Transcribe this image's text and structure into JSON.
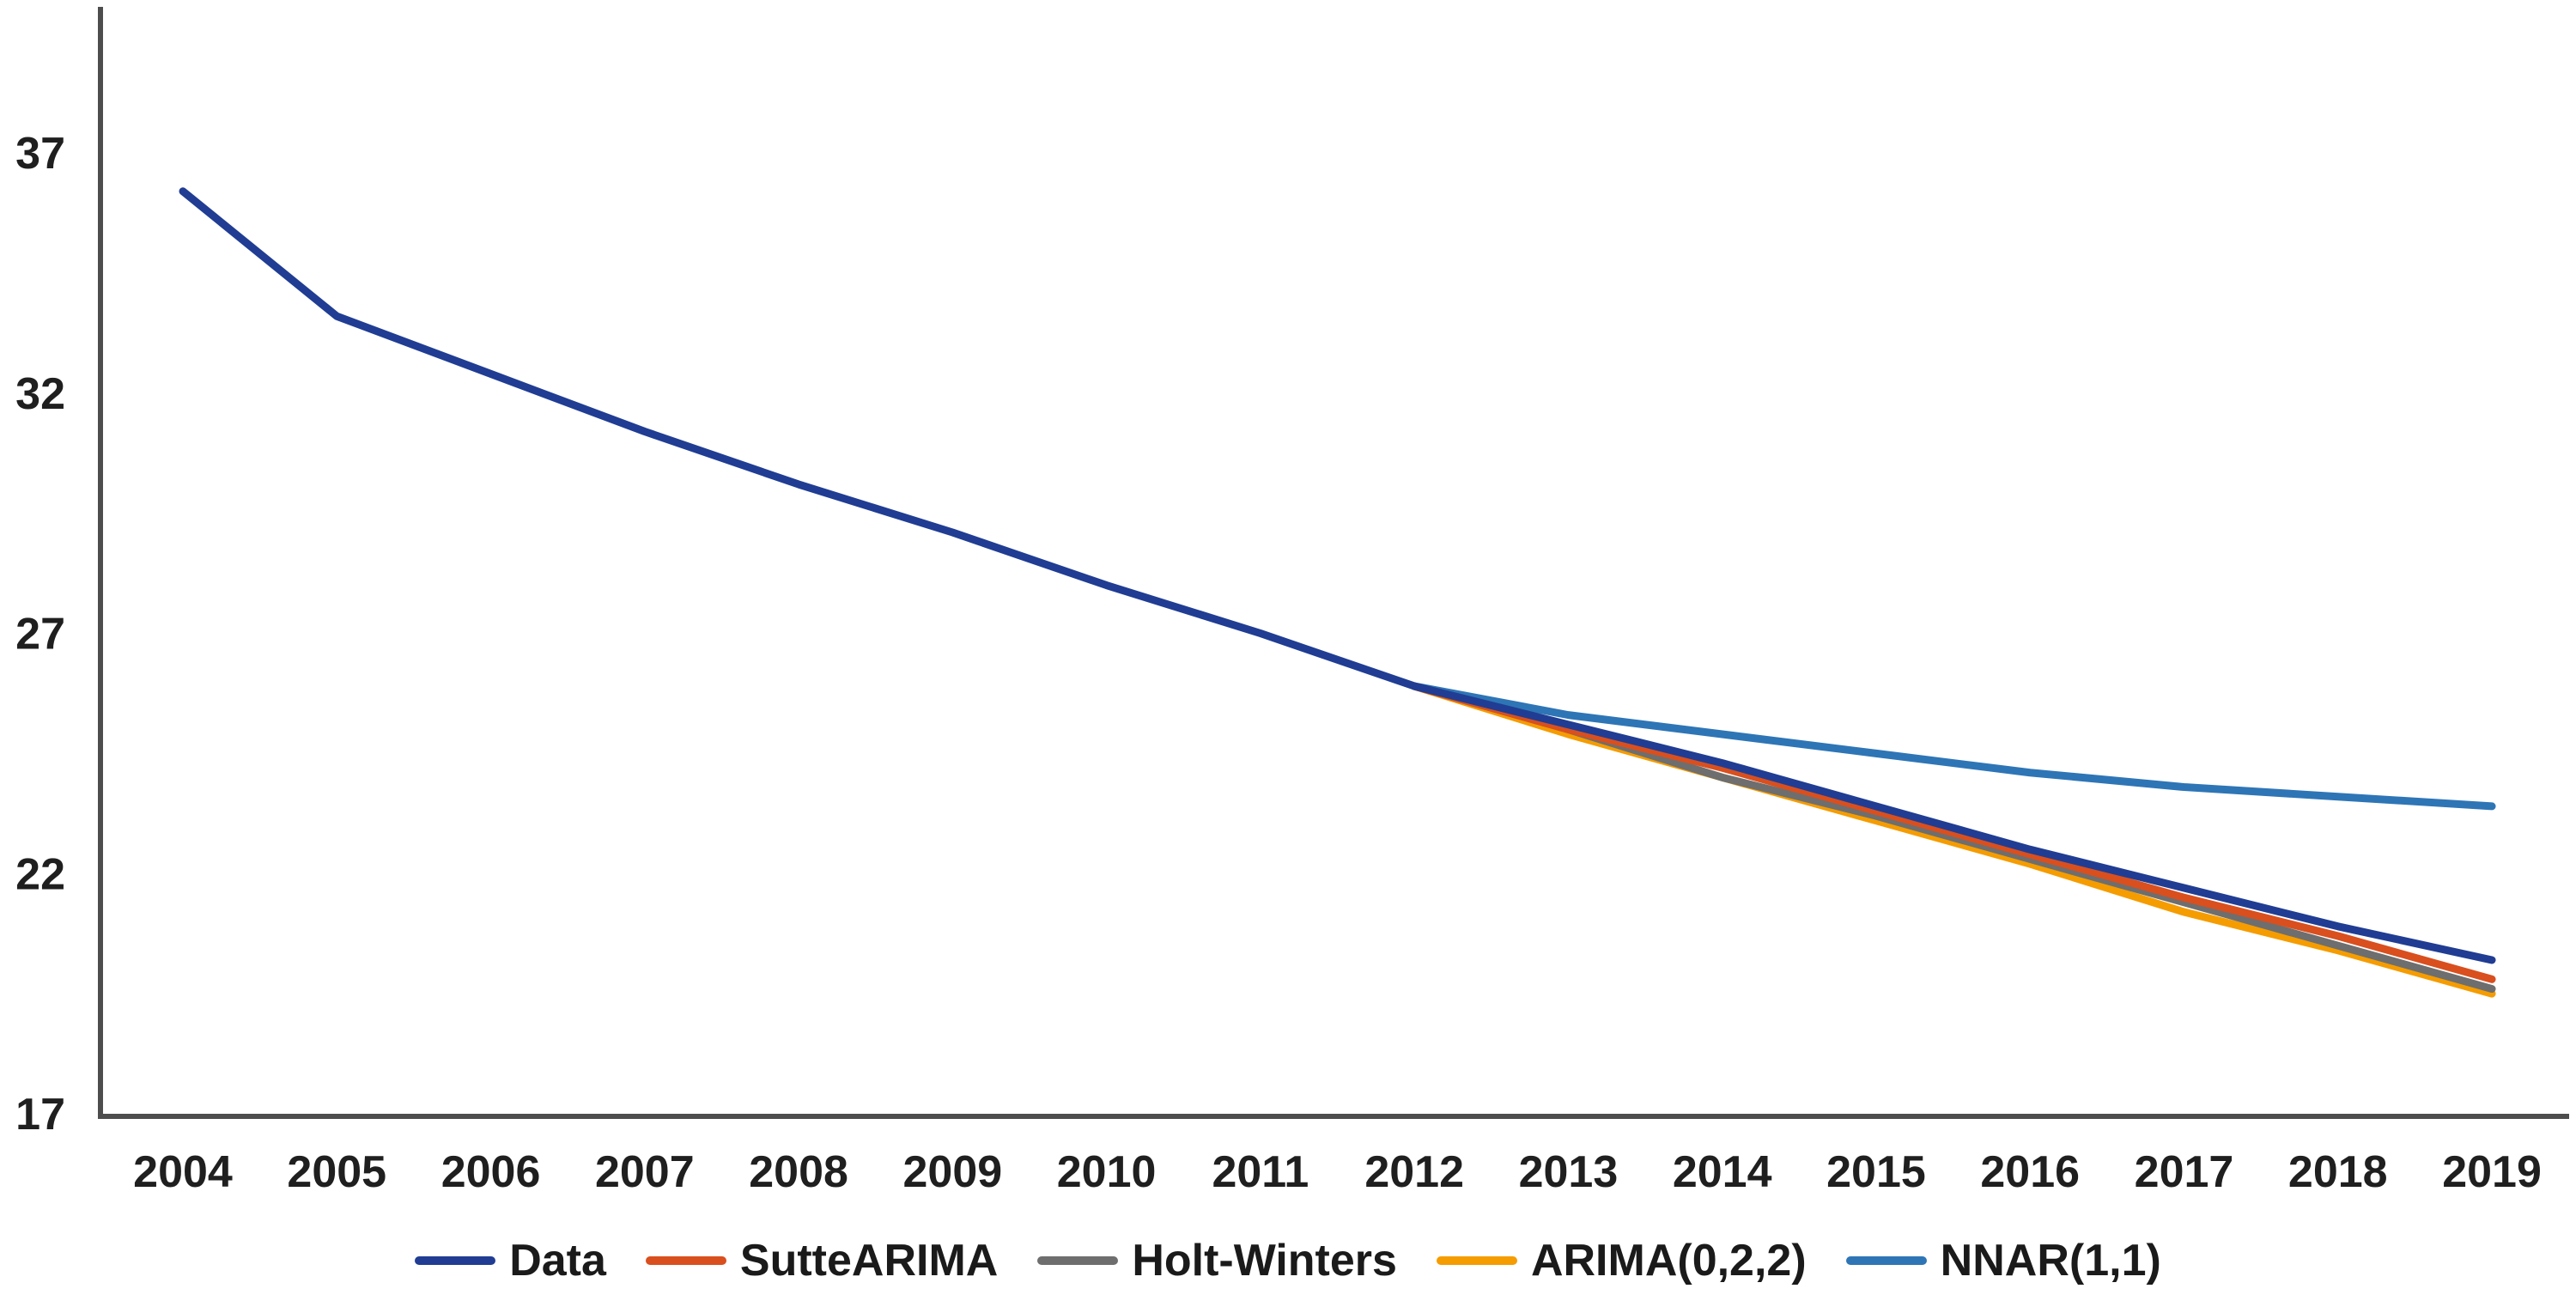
{
  "chart_data": {
    "type": "line",
    "title": "",
    "xlabel": "",
    "ylabel": "",
    "x_years": [
      2004,
      2005,
      2006,
      2007,
      2008,
      2009,
      2010,
      2011,
      2012,
      2013,
      2014,
      2015,
      2016,
      2017,
      2018,
      2019
    ],
    "y_ticks": [
      17,
      22,
      27,
      32,
      37
    ],
    "ylim": [
      17,
      40
    ],
    "grid": false,
    "legend_position": "bottom",
    "axis_color": "#4d4d4d",
    "tick_text_color": "#1f1f1f",
    "background_color": "#ffffff",
    "series": [
      {
        "name": "Data",
        "color": "#203d93",
        "values": [
          36.2,
          33.6,
          32.4,
          31.2,
          30.1,
          29.1,
          28.0,
          27.0,
          25.9,
          25.1,
          24.3,
          23.4,
          22.5,
          21.7,
          20.9,
          20.2
        ]
      },
      {
        "name": "SutteARIMA",
        "color": "#d94f1e",
        "values": [
          null,
          null,
          null,
          null,
          null,
          null,
          null,
          null,
          25.9,
          25.0,
          24.2,
          23.3,
          22.4,
          21.5,
          20.7,
          19.8
        ]
      },
      {
        "name": "Holt-Winters",
        "color": "#6e6e6e",
        "values": [
          null,
          null,
          null,
          null,
          null,
          null,
          null,
          null,
          25.9,
          25.0,
          24.0,
          23.2,
          22.3,
          21.4,
          20.5,
          19.6
        ]
      },
      {
        "name": "ARIMA(0,2,2)",
        "color": "#f59c00",
        "values": [
          null,
          null,
          null,
          null,
          null,
          null,
          null,
          null,
          25.9,
          24.9,
          24.0,
          23.1,
          22.2,
          21.2,
          20.4,
          19.5
        ]
      },
      {
        "name": "NNAR(1,1)",
        "color": "#2e75b6",
        "values": [
          null,
          null,
          null,
          null,
          null,
          null,
          null,
          null,
          25.9,
          25.3,
          24.9,
          24.5,
          24.1,
          23.8,
          23.6,
          23.4
        ]
      }
    ]
  }
}
